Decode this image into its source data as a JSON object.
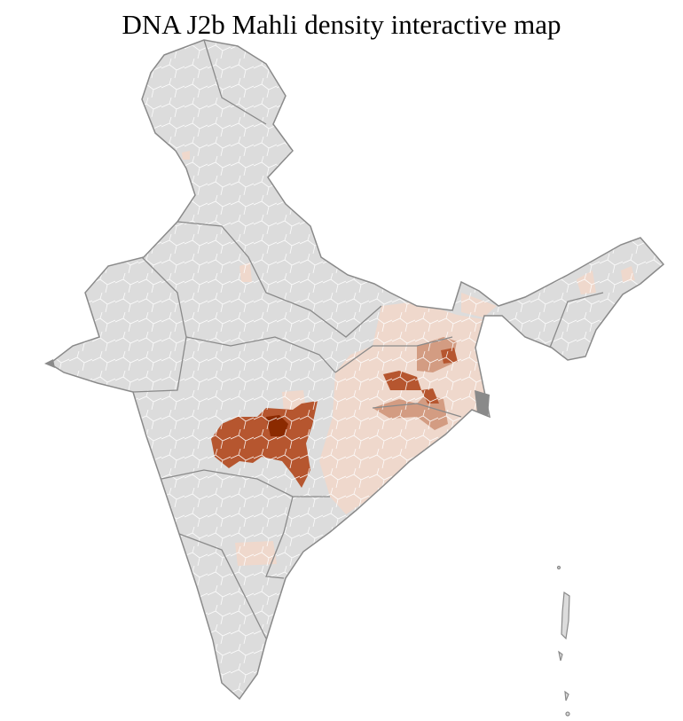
{
  "title": "DNA J2b Mahli density interactive map",
  "colors": {
    "no_data": "#dcdcdc",
    "low": "#efd8cc",
    "medium": "#d39c82",
    "high": "#b6562f",
    "highest": "#8b2a00",
    "border_state": "#8a8a8a",
    "border_district": "#ffffff"
  }
}
